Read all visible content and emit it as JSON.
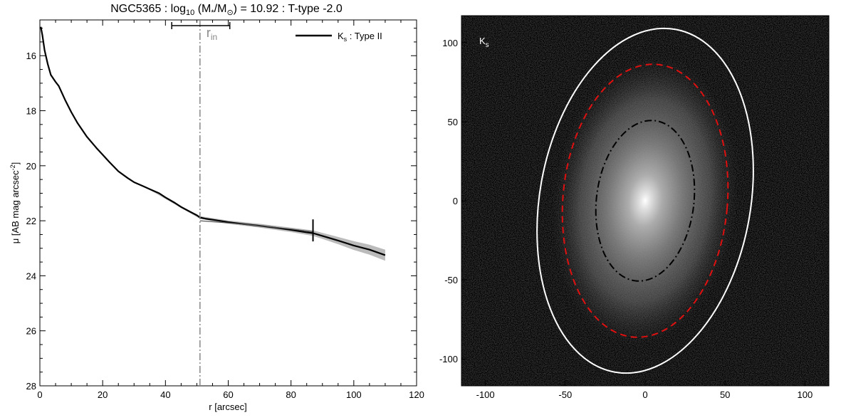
{
  "figure": {
    "title_prefix": "NGC5365 : log",
    "title_log_sub": "10",
    "title_m_open": " (M",
    "title_m_sub": "*",
    "title_slash": "/M",
    "title_sun_sub": "⊙",
    "title_suffix": ") = 10.92 : T-type -2.0"
  },
  "chart_data": [
    {
      "type": "line",
      "xlabel": "r [arcsec]",
      "ylabel_main": "μ [AB mag arcsec",
      "ylabel_sup": "-2",
      "ylabel_close": "]",
      "xlim": [
        0,
        120
      ],
      "ylim": [
        28,
        14.7
      ],
      "y_inverted": true,
      "xticks": [
        0,
        20,
        40,
        60,
        80,
        100,
        120
      ],
      "yticks": [
        16,
        18,
        20,
        22,
        24,
        26,
        28
      ],
      "legend": {
        "label_main": "K",
        "label_sub": "s",
        "label_rest": " : Type II",
        "position": "top-right",
        "color": "#000000"
      },
      "r_in": {
        "value": 51,
        "label_main": "r",
        "label_sub": "in",
        "range": [
          42,
          60.5
        ],
        "color": "#888888"
      },
      "break_marker": {
        "x": 87,
        "y_range": [
          21.95,
          22.75
        ]
      },
      "series": [
        {
          "name": "Ks profile",
          "color": "#000000",
          "x": [
            0.3,
            0.8,
            1.5,
            2.5,
            3.5,
            5,
            6,
            8,
            10,
            12,
            15,
            18,
            20,
            22,
            25,
            28,
            30,
            33,
            35,
            38,
            40,
            43,
            45,
            48,
            50,
            51,
            53,
            56,
            60,
            65,
            70,
            75,
            80,
            85,
            87,
            90,
            95,
            100,
            105,
            110
          ],
          "y": [
            14.95,
            15.25,
            15.8,
            16.3,
            16.7,
            16.95,
            17.1,
            17.6,
            18.05,
            18.45,
            18.95,
            19.35,
            19.6,
            19.85,
            20.2,
            20.45,
            20.6,
            20.75,
            20.85,
            21.0,
            21.15,
            21.35,
            21.5,
            21.68,
            21.8,
            21.88,
            21.93,
            21.98,
            22.05,
            22.12,
            22.18,
            22.25,
            22.33,
            22.42,
            22.45,
            22.55,
            22.72,
            22.9,
            23.05,
            23.25
          ]
        },
        {
          "name": "outer disk fit",
          "color": "#555555",
          "x": [
            51,
            60,
            70,
            80,
            87
          ],
          "y": [
            22.0,
            22.08,
            22.18,
            22.3,
            22.4
          ]
        }
      ],
      "uncertainty_band": {
        "color": "#bbbbbb",
        "x": [
          35,
          45,
          51,
          60,
          70,
          80,
          87,
          90,
          95,
          100,
          105,
          110
        ],
        "half_width": [
          0.03,
          0.04,
          0.05,
          0.06,
          0.07,
          0.08,
          0.1,
          0.11,
          0.13,
          0.16,
          0.18,
          0.2
        ]
      }
    },
    {
      "type": "heatmap",
      "label_main": "K",
      "label_sub": "s",
      "xlim": [
        -115,
        115
      ],
      "ylim": [
        -117,
        117
      ],
      "xticks": [
        -100,
        -50,
        0,
        50,
        100
      ],
      "yticks": [
        -100,
        -50,
        0,
        50,
        100
      ],
      "ellipses": [
        {
          "name": "outer ellipse",
          "cx": 0,
          "cy": 0,
          "rx": 66,
          "ry": 110,
          "rotation_deg": 10,
          "color": "#ffffff",
          "style": "solid"
        },
        {
          "name": "middle ellipse",
          "cx": 0,
          "cy": 0,
          "rx": 51.5,
          "ry": 86.5,
          "rotation_deg": 5,
          "color": "#e01010",
          "style": "dashed"
        },
        {
          "name": "inner ellipse",
          "cx": 0,
          "cy": 0,
          "rx": 30.5,
          "ry": 51,
          "rotation_deg": 7,
          "color": "#000000",
          "style": "dashdot"
        }
      ]
    }
  ]
}
